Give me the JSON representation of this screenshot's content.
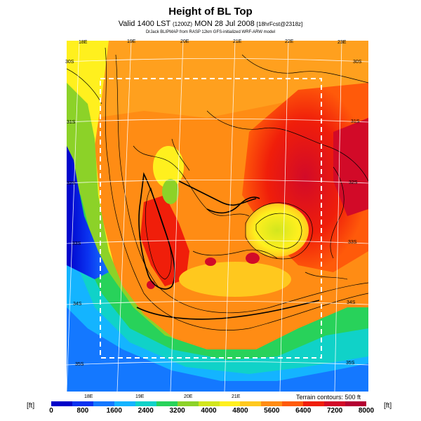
{
  "header": {
    "title": "Height of BL Top",
    "subtitle_main": "Valid 1400 LST",
    "subtitle_run": "(1200Z)",
    "subtitle_date": "MON 28 Jul 2008",
    "subtitle_grid": "[18hrFcst@2318z]",
    "model_line": "DrJack BLIPMAP from RASP 12km GFS-initialized WRF-ARW model"
  },
  "map": {
    "top_lon_labels": [
      "18E",
      "19E",
      "20E",
      "21E",
      "22E",
      "23E"
    ],
    "bottom_lon_labels": [
      "18E",
      "19E",
      "20E",
      "21E"
    ],
    "left_lat_labels": [
      "30S",
      "31S",
      "32S",
      "33S",
      "34S",
      "35S"
    ],
    "right_lat_labels": [
      "30S",
      "31S",
      "32S",
      "33S",
      "34S",
      "35S"
    ],
    "terrain_note": "Terrain contours: 500 ft"
  },
  "legend": {
    "unit_left": "[ft]",
    "unit_right": "[ft]",
    "ticks": [
      "0",
      "800",
      "1600",
      "2400",
      "3200",
      "4000",
      "4800",
      "5600",
      "6400",
      "7200",
      "8000"
    ],
    "colors": [
      "#0000c8",
      "#0a32f0",
      "#1478ff",
      "#14b4ff",
      "#10d2c8",
      "#28d25a",
      "#8cd228",
      "#d2e61e",
      "#fff01e",
      "#ffc81e",
      "#ff8c14",
      "#ff5a0a",
      "#f01e0a",
      "#d20a28",
      "#b40032"
    ]
  }
}
